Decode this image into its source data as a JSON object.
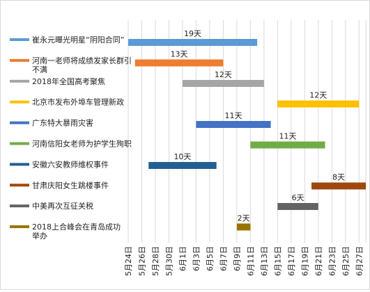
{
  "chart_data": {
    "type": "bar",
    "orientation": "horizontal-gantt",
    "x_axis_ticks": [
      "5月24日",
      "5月26日",
      "5月28日",
      "5月30日",
      "6月1日",
      "6月3日",
      "6月5日",
      "6月7日",
      "6月9日",
      "6月11日",
      "6月13日",
      "6月15日",
      "6月17日",
      "6月19日",
      "6月21日",
      "6月23日",
      "6月25日",
      "6月27日"
    ],
    "xlim": [
      "2018-05-24",
      "2018-06-28"
    ],
    "legend_position": "left",
    "grid": true,
    "series": [
      {
        "name": "崔永元曝光明星“阴阳合同”",
        "start": "2018-05-24",
        "duration_days": 19,
        "duration_label": "19天",
        "color": "#5b9bd5"
      },
      {
        "name": "河南一老师将成绩发家长群引不满",
        "start": "2018-05-25",
        "duration_days": 13,
        "duration_label": "13天",
        "color": "#ed7d31"
      },
      {
        "name": "2018年全国高考聚焦",
        "start": "2018-06-01",
        "duration_days": 12,
        "duration_label": "12天",
        "color": "#a5a5a5"
      },
      {
        "name": "北京市发布外埠车管理新政",
        "start": "2018-06-15",
        "duration_days": 12,
        "duration_label": "12天",
        "color": "#ffc000"
      },
      {
        "name": "广东特大暴雨灾害",
        "start": "2018-06-03",
        "duration_days": 11,
        "duration_label": "11天",
        "color": "#4472c4"
      },
      {
        "name": "河南信阳女老师为护学生殉职",
        "start": "2018-06-11",
        "duration_days": 11,
        "duration_label": "11天",
        "color": "#70ad47"
      },
      {
        "name": "安徽六安教师维权事件",
        "start": "2018-05-27",
        "duration_days": 10,
        "duration_label": "10天",
        "color": "#255e91"
      },
      {
        "name": "甘肃庆阳女生跳楼事件",
        "start": "2018-06-20",
        "duration_days": 8,
        "duration_label": "8天",
        "color": "#9e480e"
      },
      {
        "name": "中美再次互征关税",
        "start": "2018-06-15",
        "duration_days": 6,
        "duration_label": "6天",
        "color": "#636363"
      },
      {
        "name": "2018上合峰会在青岛成功举办",
        "start": "2018-06-09",
        "duration_days": 2,
        "duration_label": "2天",
        "color": "#997300"
      }
    ]
  }
}
